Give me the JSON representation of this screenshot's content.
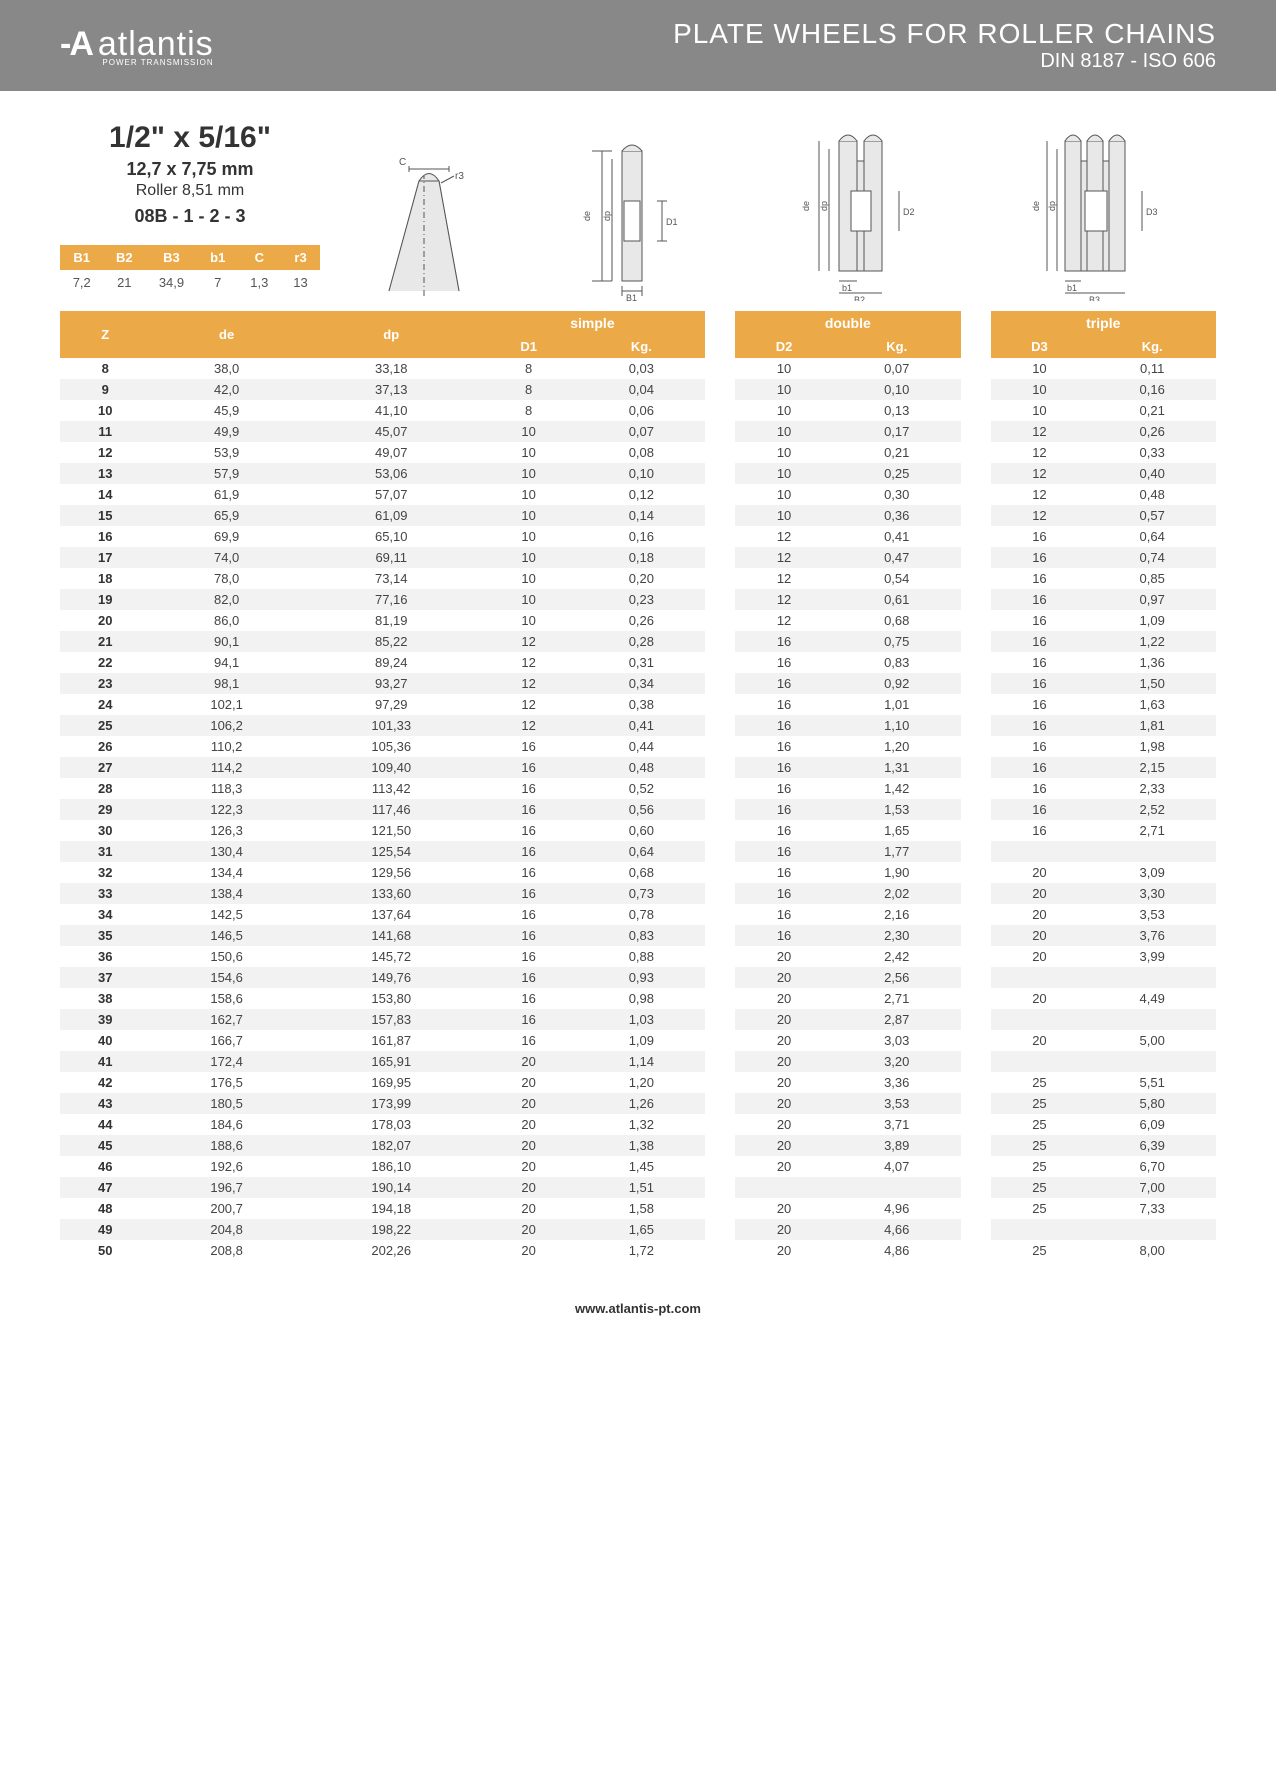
{
  "header": {
    "logo_mark": "-A",
    "logo_text": "atlantis",
    "logo_sub": "POWER TRANSMISSION",
    "title": "PLATE WHEELS FOR ROLLER CHAINS",
    "subtitle": "DIN 8187 - ISO 606"
  },
  "spec": {
    "size": "1/2\" x 5/16\"",
    "mm": "12,7 x 7,75 mm",
    "roller": "Roller 8,51 mm",
    "code": "08B - 1 - 2 - 3",
    "mini_headers": [
      "B1",
      "B2",
      "B3",
      "b1",
      "C",
      "r3"
    ],
    "mini_values": [
      "7,2",
      "21",
      "34,9",
      "7",
      "1,3",
      "13"
    ]
  },
  "table": {
    "group_labels": {
      "simple": "simple",
      "double": "double",
      "triple": "triple"
    },
    "cols": {
      "z": "Z",
      "de": "de",
      "dp": "dp",
      "d1": "D1",
      "kg1": "Kg.",
      "d2": "D2",
      "kg2": "Kg.",
      "d3": "D3",
      "kg3": "Kg."
    },
    "rows": [
      {
        "z": "8",
        "de": "38,0",
        "dp": "33,18",
        "d1": "8",
        "kg1": "0,03",
        "d2": "10",
        "kg2": "0,07",
        "d3": "10",
        "kg3": "0,11"
      },
      {
        "z": "9",
        "de": "42,0",
        "dp": "37,13",
        "d1": "8",
        "kg1": "0,04",
        "d2": "10",
        "kg2": "0,10",
        "d3": "10",
        "kg3": "0,16"
      },
      {
        "z": "10",
        "de": "45,9",
        "dp": "41,10",
        "d1": "8",
        "kg1": "0,06",
        "d2": "10",
        "kg2": "0,13",
        "d3": "10",
        "kg3": "0,21"
      },
      {
        "z": "11",
        "de": "49,9",
        "dp": "45,07",
        "d1": "10",
        "kg1": "0,07",
        "d2": "10",
        "kg2": "0,17",
        "d3": "12",
        "kg3": "0,26"
      },
      {
        "z": "12",
        "de": "53,9",
        "dp": "49,07",
        "d1": "10",
        "kg1": "0,08",
        "d2": "10",
        "kg2": "0,21",
        "d3": "12",
        "kg3": "0,33"
      },
      {
        "z": "13",
        "de": "57,9",
        "dp": "53,06",
        "d1": "10",
        "kg1": "0,10",
        "d2": "10",
        "kg2": "0,25",
        "d3": "12",
        "kg3": "0,40"
      },
      {
        "z": "14",
        "de": "61,9",
        "dp": "57,07",
        "d1": "10",
        "kg1": "0,12",
        "d2": "10",
        "kg2": "0,30",
        "d3": "12",
        "kg3": "0,48"
      },
      {
        "z": "15",
        "de": "65,9",
        "dp": "61,09",
        "d1": "10",
        "kg1": "0,14",
        "d2": "10",
        "kg2": "0,36",
        "d3": "12",
        "kg3": "0,57"
      },
      {
        "z": "16",
        "de": "69,9",
        "dp": "65,10",
        "d1": "10",
        "kg1": "0,16",
        "d2": "12",
        "kg2": "0,41",
        "d3": "16",
        "kg3": "0,64"
      },
      {
        "z": "17",
        "de": "74,0",
        "dp": "69,11",
        "d1": "10",
        "kg1": "0,18",
        "d2": "12",
        "kg2": "0,47",
        "d3": "16",
        "kg3": "0,74"
      },
      {
        "z": "18",
        "de": "78,0",
        "dp": "73,14",
        "d1": "10",
        "kg1": "0,20",
        "d2": "12",
        "kg2": "0,54",
        "d3": "16",
        "kg3": "0,85"
      },
      {
        "z": "19",
        "de": "82,0",
        "dp": "77,16",
        "d1": "10",
        "kg1": "0,23",
        "d2": "12",
        "kg2": "0,61",
        "d3": "16",
        "kg3": "0,97"
      },
      {
        "z": "20",
        "de": "86,0",
        "dp": "81,19",
        "d1": "10",
        "kg1": "0,26",
        "d2": "12",
        "kg2": "0,68",
        "d3": "16",
        "kg3": "1,09"
      },
      {
        "z": "21",
        "de": "90,1",
        "dp": "85,22",
        "d1": "12",
        "kg1": "0,28",
        "d2": "16",
        "kg2": "0,75",
        "d3": "16",
        "kg3": "1,22"
      },
      {
        "z": "22",
        "de": "94,1",
        "dp": "89,24",
        "d1": "12",
        "kg1": "0,31",
        "d2": "16",
        "kg2": "0,83",
        "d3": "16",
        "kg3": "1,36"
      },
      {
        "z": "23",
        "de": "98,1",
        "dp": "93,27",
        "d1": "12",
        "kg1": "0,34",
        "d2": "16",
        "kg2": "0,92",
        "d3": "16",
        "kg3": "1,50"
      },
      {
        "z": "24",
        "de": "102,1",
        "dp": "97,29",
        "d1": "12",
        "kg1": "0,38",
        "d2": "16",
        "kg2": "1,01",
        "d3": "16",
        "kg3": "1,63"
      },
      {
        "z": "25",
        "de": "106,2",
        "dp": "101,33",
        "d1": "12",
        "kg1": "0,41",
        "d2": "16",
        "kg2": "1,10",
        "d3": "16",
        "kg3": "1,81"
      },
      {
        "z": "26",
        "de": "110,2",
        "dp": "105,36",
        "d1": "16",
        "kg1": "0,44",
        "d2": "16",
        "kg2": "1,20",
        "d3": "16",
        "kg3": "1,98"
      },
      {
        "z": "27",
        "de": "114,2",
        "dp": "109,40",
        "d1": "16",
        "kg1": "0,48",
        "d2": "16",
        "kg2": "1,31",
        "d3": "16",
        "kg3": "2,15"
      },
      {
        "z": "28",
        "de": "118,3",
        "dp": "113,42",
        "d1": "16",
        "kg1": "0,52",
        "d2": "16",
        "kg2": "1,42",
        "d3": "16",
        "kg3": "2,33"
      },
      {
        "z": "29",
        "de": "122,3",
        "dp": "117,46",
        "d1": "16",
        "kg1": "0,56",
        "d2": "16",
        "kg2": "1,53",
        "d3": "16",
        "kg3": "2,52"
      },
      {
        "z": "30",
        "de": "126,3",
        "dp": "121,50",
        "d1": "16",
        "kg1": "0,60",
        "d2": "16",
        "kg2": "1,65",
        "d3": "16",
        "kg3": "2,71"
      },
      {
        "z": "31",
        "de": "130,4",
        "dp": "125,54",
        "d1": "16",
        "kg1": "0,64",
        "d2": "16",
        "kg2": "1,77",
        "d3": "",
        "kg3": ""
      },
      {
        "z": "32",
        "de": "134,4",
        "dp": "129,56",
        "d1": "16",
        "kg1": "0,68",
        "d2": "16",
        "kg2": "1,90",
        "d3": "20",
        "kg3": "3,09"
      },
      {
        "z": "33",
        "de": "138,4",
        "dp": "133,60",
        "d1": "16",
        "kg1": "0,73",
        "d2": "16",
        "kg2": "2,02",
        "d3": "20",
        "kg3": "3,30"
      },
      {
        "z": "34",
        "de": "142,5",
        "dp": "137,64",
        "d1": "16",
        "kg1": "0,78",
        "d2": "16",
        "kg2": "2,16",
        "d3": "20",
        "kg3": "3,53"
      },
      {
        "z": "35",
        "de": "146,5",
        "dp": "141,68",
        "d1": "16",
        "kg1": "0,83",
        "d2": "16",
        "kg2": "2,30",
        "d3": "20",
        "kg3": "3,76"
      },
      {
        "z": "36",
        "de": "150,6",
        "dp": "145,72",
        "d1": "16",
        "kg1": "0,88",
        "d2": "20",
        "kg2": "2,42",
        "d3": "20",
        "kg3": "3,99"
      },
      {
        "z": "37",
        "de": "154,6",
        "dp": "149,76",
        "d1": "16",
        "kg1": "0,93",
        "d2": "20",
        "kg2": "2,56",
        "d3": "",
        "kg3": ""
      },
      {
        "z": "38",
        "de": "158,6",
        "dp": "153,80",
        "d1": "16",
        "kg1": "0,98",
        "d2": "20",
        "kg2": "2,71",
        "d3": "20",
        "kg3": "4,49"
      },
      {
        "z": "39",
        "de": "162,7",
        "dp": "157,83",
        "d1": "16",
        "kg1": "1,03",
        "d2": "20",
        "kg2": "2,87",
        "d3": "",
        "kg3": ""
      },
      {
        "z": "40",
        "de": "166,7",
        "dp": "161,87",
        "d1": "16",
        "kg1": "1,09",
        "d2": "20",
        "kg2": "3,03",
        "d3": "20",
        "kg3": "5,00"
      },
      {
        "z": "41",
        "de": "172,4",
        "dp": "165,91",
        "d1": "20",
        "kg1": "1,14",
        "d2": "20",
        "kg2": "3,20",
        "d3": "",
        "kg3": ""
      },
      {
        "z": "42",
        "de": "176,5",
        "dp": "169,95",
        "d1": "20",
        "kg1": "1,20",
        "d2": "20",
        "kg2": "3,36",
        "d3": "25",
        "kg3": "5,51"
      },
      {
        "z": "43",
        "de": "180,5",
        "dp": "173,99",
        "d1": "20",
        "kg1": "1,26",
        "d2": "20",
        "kg2": "3,53",
        "d3": "25",
        "kg3": "5,80"
      },
      {
        "z": "44",
        "de": "184,6",
        "dp": "178,03",
        "d1": "20",
        "kg1": "1,32",
        "d2": "20",
        "kg2": "3,71",
        "d3": "25",
        "kg3": "6,09"
      },
      {
        "z": "45",
        "de": "188,6",
        "dp": "182,07",
        "d1": "20",
        "kg1": "1,38",
        "d2": "20",
        "kg2": "3,89",
        "d3": "25",
        "kg3": "6,39"
      },
      {
        "z": "46",
        "de": "192,6",
        "dp": "186,10",
        "d1": "20",
        "kg1": "1,45",
        "d2": "20",
        "kg2": "4,07",
        "d3": "25",
        "kg3": "6,70"
      },
      {
        "z": "47",
        "de": "196,7",
        "dp": "190,14",
        "d1": "20",
        "kg1": "1,51",
        "d2": "",
        "kg2": "",
        "d3": "25",
        "kg3": "7,00"
      },
      {
        "z": "48",
        "de": "200,7",
        "dp": "194,18",
        "d1": "20",
        "kg1": "1,58",
        "d2": "20",
        "kg2": "4,96",
        "d3": "25",
        "kg3": "7,33"
      },
      {
        "z": "49",
        "de": "204,8",
        "dp": "198,22",
        "d1": "20",
        "kg1": "1,65",
        "d2": "20",
        "kg2": "4,66",
        "d3": "",
        "kg3": ""
      },
      {
        "z": "50",
        "de": "208,8",
        "dp": "202,26",
        "d1": "20",
        "kg1": "1,72",
        "d2": "20",
        "kg2": "4,86",
        "d3": "25",
        "kg3": "8,00"
      }
    ]
  },
  "footer": "www.atlantis-pt.com",
  "colors": {
    "header_bg": "#888888",
    "accent": "#eca947",
    "row_alt": "#f2f2f2"
  }
}
